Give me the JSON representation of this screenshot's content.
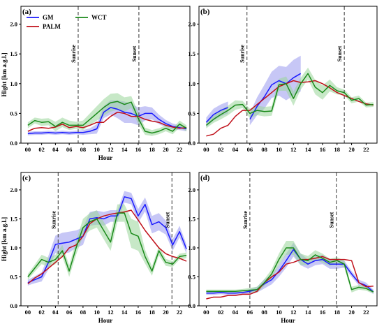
{
  "legend": [
    {
      "name": "GM",
      "color": "#1a1aff"
    },
    {
      "name": "PALM",
      "color": "#c0101a"
    },
    {
      "name": "WCT",
      "color": "#1a8a1a"
    }
  ],
  "chart_data": [
    {
      "type": "line",
      "panel": "(a)",
      "xlabel": "Hour",
      "ylabel": "Hight [km a.g.l.]",
      "xlim": [
        -1,
        23.5
      ],
      "ylim": [
        0,
        2.3
      ],
      "xticks": [
        0,
        2,
        4,
        6,
        8,
        10,
        12,
        14,
        16,
        18,
        20,
        22
      ],
      "xtick_labels": [
        "00",
        "02",
        "04",
        "06",
        "08",
        "10",
        "12",
        "14",
        "16",
        "18",
        "20",
        "22"
      ],
      "yticks": [
        0,
        0.5,
        1.0,
        1.5,
        2.0
      ],
      "ytick_labels": [
        "0.0",
        "0.5",
        "1.0",
        "1.5",
        "2.0"
      ],
      "events": [
        {
          "label": "Sunrise",
          "x": 7.3
        },
        {
          "label": "Sunset",
          "x": 16.1
        }
      ],
      "legend": true,
      "series": [
        {
          "name": "GM",
          "color": "#1a1aff",
          "band_color": "#9999ee",
          "x": [
            0,
            1,
            2,
            3,
            4,
            5,
            6,
            7,
            8,
            9,
            10,
            11,
            12,
            13,
            14,
            15,
            16,
            17,
            18,
            19,
            20,
            21,
            22,
            23
          ],
          "values": [
            0.16,
            0.17,
            0.17,
            0.18,
            0.17,
            0.18,
            0.17,
            0.18,
            0.18,
            0.2,
            0.24,
            0.52,
            0.6,
            0.57,
            0.52,
            0.5,
            0.45,
            0.5,
            0.5,
            0.4,
            0.33,
            0.28,
            0.26,
            0.24
          ],
          "band": [
            0.03,
            0.03,
            0.03,
            0.03,
            0.03,
            0.03,
            0.03,
            0.03,
            0.04,
            0.05,
            0.08,
            0.1,
            0.12,
            0.15,
            0.18,
            0.16,
            0.15,
            0.12,
            0.1,
            0.08,
            0.06,
            0.05,
            0.04,
            0.04
          ]
        },
        {
          "name": "PALM",
          "color": "#c0101a",
          "x": [
            0,
            1,
            2,
            3,
            4,
            5,
            6,
            7,
            8,
            9,
            10,
            11,
            12,
            13,
            14,
            15,
            16,
            17,
            18,
            19,
            20,
            21,
            22,
            23
          ],
          "values": [
            0.2,
            0.25,
            0.26,
            0.25,
            0.27,
            0.32,
            0.26,
            0.28,
            0.26,
            0.3,
            0.35,
            0.35,
            0.45,
            0.52,
            0.5,
            0.45,
            0.45,
            0.4,
            0.37,
            0.35,
            0.3,
            0.27,
            0.25,
            0.26
          ]
        },
        {
          "name": "WCT",
          "color": "#1a8a1a",
          "band_color": "#99d699",
          "x": [
            0,
            1,
            2,
            3,
            4,
            5,
            6,
            7,
            8,
            9,
            10,
            11,
            12,
            13,
            14,
            15,
            16,
            17,
            18,
            19,
            20,
            21,
            22,
            23
          ],
          "values": [
            0.3,
            0.38,
            0.35,
            0.36,
            0.28,
            0.35,
            0.3,
            0.3,
            0.3,
            0.4,
            0.5,
            0.6,
            0.68,
            0.7,
            0.65,
            0.69,
            0.42,
            0.2,
            0.17,
            0.2,
            0.25,
            0.2,
            0.32,
            0.25
          ],
          "band": [
            0.05,
            0.05,
            0.06,
            0.06,
            0.08,
            0.08,
            0.08,
            0.06,
            0.08,
            0.1,
            0.12,
            0.14,
            0.15,
            0.14,
            0.12,
            0.1,
            0.1,
            0.06,
            0.05,
            0.05,
            0.05,
            0.05,
            0.06,
            0.05
          ]
        }
      ]
    },
    {
      "type": "line",
      "panel": "(b)",
      "xlabel": "",
      "ylabel": "",
      "xlim": [
        -1,
        23.5
      ],
      "ylim": [
        0,
        2.3
      ],
      "xticks": [
        0,
        2,
        4,
        6,
        8,
        10,
        12,
        14,
        16,
        18,
        20,
        22
      ],
      "xtick_labels": [
        "00",
        "02",
        "04",
        "06",
        "08",
        "10",
        "12",
        "14",
        "16",
        "18",
        "20",
        "22"
      ],
      "yticks": [
        0,
        0.5,
        1.0,
        1.5,
        2.0
      ],
      "ytick_labels": [
        "0.0",
        "0.5",
        "1.0",
        "1.5",
        "2.0"
      ],
      "events": [
        {
          "label": "Sunrise",
          "x": 5.6
        },
        {
          "label": "Sunset",
          "x": 19.0
        }
      ],
      "legend": false,
      "series": [
        {
          "name": "GM",
          "color": "#1a1aff",
          "band_color": "#9999ee",
          "x": [
            0,
            1,
            2,
            3,
            4,
            5,
            6,
            7,
            8,
            9,
            10,
            11,
            12,
            13
          ],
          "values": [
            0.35,
            0.48,
            0.55,
            0.6,
            null,
            null,
            0.4,
            0.62,
            0.78,
            0.98,
            1.05,
            1.0,
            1.1,
            1.17
          ],
          "band": [
            0.08,
            0.1,
            0.1,
            0.1,
            null,
            null,
            0.1,
            0.15,
            0.2,
            0.22,
            0.25,
            0.28,
            0.3,
            0.3
          ]
        },
        {
          "name": "PALM",
          "color": "#c0101a",
          "x": [
            0,
            1,
            2,
            3,
            4,
            5,
            6,
            7,
            8,
            9,
            10,
            11,
            12,
            13,
            14,
            15,
            16,
            17,
            18,
            19,
            20,
            21,
            22,
            23
          ],
          "values": [
            0.12,
            0.15,
            0.25,
            0.3,
            0.45,
            0.55,
            0.55,
            0.65,
            0.75,
            0.85,
            0.95,
            1.0,
            1.05,
            1.02,
            1.03,
            1.05,
            1.0,
            0.93,
            0.85,
            0.8,
            0.75,
            0.7,
            0.66,
            0.64
          ]
        },
        {
          "name": "WCT",
          "color": "#1a8a1a",
          "band_color": "#99d699",
          "x": [
            0,
            1,
            2,
            3,
            4,
            5,
            6,
            7,
            8,
            9,
            10,
            11,
            12,
            13,
            14,
            15,
            16,
            17,
            18,
            19,
            20,
            21,
            22,
            23
          ],
          "values": [
            0.3,
            0.4,
            0.48,
            0.55,
            0.64,
            0.65,
            0.5,
            0.55,
            0.53,
            0.54,
            0.98,
            1.0,
            0.75,
            1.0,
            1.17,
            0.94,
            0.85,
            0.97,
            0.88,
            0.85,
            0.72,
            0.75,
            0.64,
            0.65
          ],
          "band": [
            0.05,
            0.06,
            0.08,
            0.08,
            0.08,
            0.06,
            0.08,
            0.08,
            0.08,
            0.08,
            0.1,
            0.12,
            0.12,
            0.1,
            0.1,
            0.12,
            0.12,
            0.1,
            0.06,
            0.05,
            0.05,
            0.05,
            0.04,
            0.04
          ]
        }
      ]
    },
    {
      "type": "line",
      "panel": "(c)",
      "xlabel": "Hour",
      "ylabel": "Hight [km a.g.l.]",
      "xlim": [
        -1,
        23.5
      ],
      "ylim": [
        0,
        2.3
      ],
      "xticks": [
        0,
        2,
        4,
        6,
        8,
        10,
        12,
        14,
        16,
        18,
        20,
        22
      ],
      "xtick_labels": [
        "00",
        "02",
        "04",
        "06",
        "08",
        "10",
        "12",
        "14",
        "16",
        "18",
        "20",
        "22"
      ],
      "yticks": [
        0,
        0.5,
        1.0,
        1.5,
        2.0
      ],
      "ytick_labels": [
        "0.0",
        "0.5",
        "1.0",
        "1.5",
        "2.0"
      ],
      "events": [
        {
          "label": "Sunrise",
          "x": 4.4
        },
        {
          "label": "Sunset",
          "x": 20.9
        }
      ],
      "legend": false,
      "series": [
        {
          "name": "GM",
          "color": "#1a1aff",
          "band_color": "#9999ee",
          "x": [
            0,
            1,
            2,
            3,
            4,
            5,
            6,
            7,
            8,
            9,
            10,
            11,
            12,
            13,
            14,
            15,
            16,
            17,
            18,
            19,
            20,
            21,
            22,
            23
          ],
          "values": [
            0.4,
            0.45,
            0.5,
            0.75,
            1.06,
            1.08,
            1.1,
            1.15,
            1.2,
            1.5,
            1.52,
            1.5,
            1.55,
            1.55,
            1.88,
            1.85,
            1.55,
            1.75,
            1.4,
            1.45,
            1.35,
            1.05,
            1.28,
            0.98
          ],
          "band": [
            0.05,
            0.06,
            0.08,
            0.12,
            0.15,
            0.18,
            0.18,
            0.15,
            0.15,
            0.12,
            0.12,
            0.12,
            0.1,
            0.1,
            0.1,
            0.1,
            0.12,
            0.12,
            0.15,
            0.15,
            0.12,
            0.1,
            0.1,
            0.08
          ]
        },
        {
          "name": "PALM",
          "color": "#c0101a",
          "x": [
            0,
            1,
            2,
            3,
            4,
            5,
            6,
            7,
            8,
            9,
            10,
            11,
            12,
            13,
            14,
            15,
            16,
            17,
            18,
            19,
            20,
            21,
            22,
            23
          ],
          "values": [
            0.38,
            0.48,
            0.55,
            0.65,
            0.75,
            0.85,
            1.0,
            1.05,
            1.2,
            1.42,
            1.5,
            1.55,
            1.58,
            1.6,
            1.62,
            1.65,
            1.48,
            1.3,
            1.15,
            1.0,
            0.9,
            0.85,
            0.82,
            0.77
          ]
        },
        {
          "name": "WCT",
          "color": "#1a8a1a",
          "band_color": "#99d699",
          "x": [
            0,
            1,
            2,
            3,
            4,
            5,
            6,
            7,
            8,
            9,
            10,
            11,
            12,
            13,
            14,
            15,
            16,
            17,
            18,
            19,
            20,
            21,
            22,
            23
          ],
          "values": [
            0.5,
            0.65,
            0.8,
            0.75,
            0.8,
            0.95,
            0.6,
            1.0,
            1.35,
            1.45,
            1.5,
            1.3,
            1.1,
            1.6,
            1.6,
            1.25,
            1.2,
            0.85,
            0.6,
            0.95,
            0.75,
            0.72,
            0.85,
            0.87
          ],
          "band": [
            0.05,
            0.06,
            0.08,
            0.08,
            0.08,
            0.1,
            0.1,
            0.12,
            0.15,
            0.15,
            0.15,
            0.15,
            0.15,
            0.15,
            0.15,
            0.25,
            0.25,
            0.12,
            0.08,
            0.08,
            0.06,
            0.05,
            0.05,
            0.05
          ]
        }
      ]
    },
    {
      "type": "line",
      "panel": "(d)",
      "xlabel": "Hour",
      "ylabel": "",
      "xlim": [
        -1,
        23.5
      ],
      "ylim": [
        0,
        2.3
      ],
      "xticks": [
        0,
        2,
        4,
        6,
        8,
        10,
        12,
        14,
        16,
        18,
        20,
        22
      ],
      "xtick_labels": [
        "00",
        "02",
        "04",
        "06",
        "08",
        "10",
        "12",
        "14",
        "16",
        "18",
        "20",
        "22"
      ],
      "yticks": [
        0,
        0.5,
        1.0,
        1.5,
        2.0
      ],
      "ytick_labels": [
        "0.0",
        "0.5",
        "1.0",
        "1.5",
        "2.0"
      ],
      "events": [
        {
          "label": "Sunrise",
          "x": 6.0
        },
        {
          "label": "Sunset",
          "x": 17.9
        }
      ],
      "legend": false,
      "series": [
        {
          "name": "GM",
          "color": "#1a1aff",
          "band_color": "#9999ee",
          "x": [
            0,
            1,
            2,
            3,
            4,
            5,
            6,
            7,
            8,
            9,
            10,
            11,
            12,
            13,
            14,
            15,
            16,
            17,
            18,
            19,
            20,
            21,
            22,
            23
          ],
          "values": [
            0.22,
            0.22,
            0.23,
            0.22,
            0.22,
            0.23,
            0.25,
            0.28,
            0.38,
            0.45,
            0.6,
            0.78,
            0.97,
            0.8,
            0.72,
            0.78,
            0.8,
            0.72,
            0.72,
            0.72,
            0.55,
            0.4,
            0.35,
            0.24
          ],
          "band": [
            0.03,
            0.03,
            0.03,
            0.03,
            0.03,
            0.03,
            0.04,
            0.05,
            0.08,
            0.08,
            0.1,
            0.12,
            0.12,
            0.1,
            0.08,
            0.08,
            0.08,
            0.08,
            0.08,
            0.06,
            0.05,
            0.05,
            0.05,
            0.04
          ]
        },
        {
          "name": "PALM",
          "color": "#c0101a",
          "x": [
            0,
            1,
            2,
            3,
            4,
            5,
            6,
            7,
            8,
            9,
            10,
            11,
            12,
            13,
            14,
            15,
            16,
            17,
            18,
            19,
            20,
            21,
            22,
            23
          ],
          "values": [
            0.12,
            0.15,
            0.15,
            0.18,
            0.18,
            0.2,
            0.2,
            0.25,
            0.4,
            0.5,
            0.58,
            0.72,
            0.75,
            0.8,
            0.8,
            0.82,
            0.85,
            0.8,
            0.8,
            0.8,
            0.78,
            0.4,
            0.33,
            0.34
          ]
        },
        {
          "name": "WCT",
          "color": "#1a8a1a",
          "band_color": "#99d699",
          "x": [
            0,
            1,
            2,
            3,
            4,
            5,
            6,
            7,
            8,
            9,
            10,
            11,
            12,
            13,
            14,
            15,
            16,
            17,
            18,
            19,
            20,
            21,
            22,
            23
          ],
          "values": [
            0.25,
            0.25,
            0.25,
            0.25,
            0.25,
            0.26,
            0.27,
            0.28,
            0.4,
            0.55,
            0.8,
            1.0,
            1.0,
            0.8,
            0.78,
            0.88,
            0.82,
            0.75,
            0.78,
            0.72,
            0.28,
            0.32,
            0.3,
            0.24
          ],
          "band": [
            0.03,
            0.03,
            0.03,
            0.03,
            0.03,
            0.03,
            0.04,
            0.05,
            0.06,
            0.08,
            0.1,
            0.12,
            0.12,
            0.1,
            0.08,
            0.08,
            0.08,
            0.06,
            0.06,
            0.06,
            0.05,
            0.04,
            0.04,
            0.03
          ]
        }
      ]
    }
  ]
}
